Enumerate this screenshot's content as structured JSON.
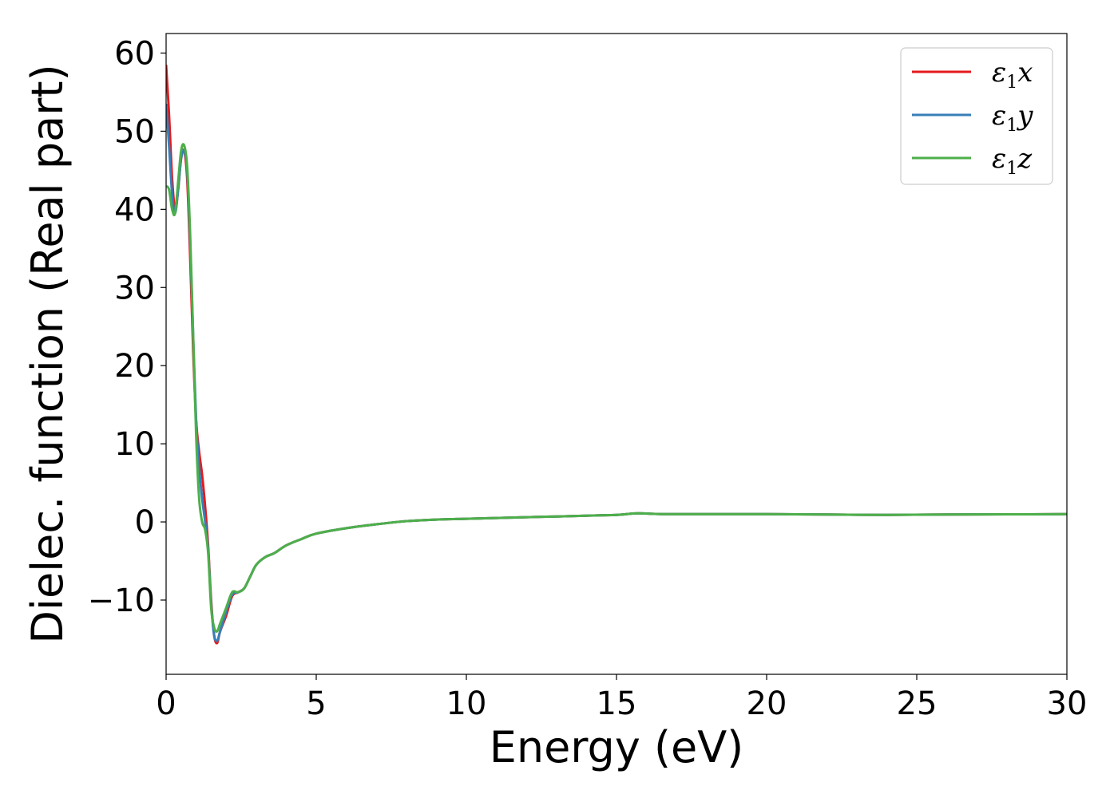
{
  "chart_data": {
    "type": "line",
    "title": "",
    "xlabel": "Energy (eV)",
    "ylabel": "Dielec. function (Real part)",
    "xlim": [
      0,
      30
    ],
    "ylim": [
      -19.5,
      62.5
    ],
    "xticks": [
      0,
      5,
      10,
      15,
      20,
      25,
      30
    ],
    "xtick_labels": [
      "0",
      "5",
      "10",
      "15",
      "20",
      "25",
      "30"
    ],
    "yticks": [
      -10,
      0,
      10,
      20,
      30,
      40,
      50,
      60
    ],
    "ytick_labels": [
      "−10",
      "0",
      "10",
      "20",
      "30",
      "40",
      "50",
      "60"
    ],
    "grid": false,
    "legend": {
      "position": "top-right",
      "entries": [
        {
          "symbol": "ε",
          "sub": "1",
          "axis": "x"
        },
        {
          "symbol": "ε",
          "sub": "1",
          "axis": "y"
        },
        {
          "symbol": "ε",
          "sub": "1",
          "axis": "z"
        }
      ]
    },
    "series": [
      {
        "name": "ε1x",
        "color": "#e41a1c",
        "x": [
          0.0,
          0.1,
          0.2,
          0.3,
          0.4,
          0.5,
          0.6,
          0.7,
          0.8,
          0.9,
          1.0,
          1.1,
          1.2,
          1.3,
          1.4,
          1.5,
          1.6,
          1.7,
          1.8,
          2.0,
          2.2,
          2.4,
          2.6,
          2.8,
          3.0,
          3.3,
          3.6,
          4.0,
          4.5,
          5.0,
          6.0,
          7.0,
          8.0,
          9.0,
          10.0,
          11.0,
          12.0,
          13.0,
          14.0,
          15.0,
          15.7,
          16.5,
          18.0,
          20.0,
          22.0,
          24.0,
          26.0,
          28.0,
          30.0
        ],
        "y": [
          58.5,
          52.0,
          44.0,
          40.0,
          42.5,
          46.5,
          47.5,
          44.0,
          34.0,
          22.0,
          13.0,
          9.0,
          6.0,
          2.0,
          -3.0,
          -10.0,
          -14.5,
          -15.5,
          -14.0,
          -12.0,
          -9.5,
          -9.0,
          -8.5,
          -7.0,
          -5.5,
          -4.5,
          -4.0,
          -3.0,
          -2.2,
          -1.5,
          -0.8,
          -0.3,
          0.1,
          0.3,
          0.4,
          0.5,
          0.6,
          0.7,
          0.8,
          0.9,
          1.1,
          1.0,
          1.0,
          1.0,
          0.95,
          0.9,
          0.95,
          0.97,
          1.0
        ]
      },
      {
        "name": "ε1y",
        "color": "#377eb8",
        "x": [
          0.0,
          0.1,
          0.2,
          0.3,
          0.4,
          0.5,
          0.6,
          0.7,
          0.8,
          0.9,
          1.0,
          1.1,
          1.2,
          1.3,
          1.4,
          1.5,
          1.6,
          1.7,
          1.8,
          2.0,
          2.2,
          2.4,
          2.6,
          2.8,
          3.0,
          3.3,
          3.6,
          4.0,
          4.5,
          5.0,
          6.0,
          7.0,
          8.0,
          9.0,
          10.0,
          11.0,
          12.0,
          13.0,
          14.0,
          15.0,
          15.7,
          16.5,
          18.0,
          20.0,
          22.0,
          24.0,
          26.0,
          28.0,
          30.0
        ],
        "y": [
          53.5,
          48.0,
          42.0,
          39.5,
          42.5,
          46.5,
          47.5,
          45.0,
          36.0,
          24.0,
          13.0,
          7.0,
          3.0,
          0.0,
          -3.5,
          -10.5,
          -14.5,
          -15.2,
          -14.0,
          -11.5,
          -9.3,
          -9.0,
          -8.5,
          -7.0,
          -5.5,
          -4.5,
          -4.0,
          -3.0,
          -2.2,
          -1.5,
          -0.8,
          -0.3,
          0.1,
          0.3,
          0.4,
          0.5,
          0.6,
          0.7,
          0.8,
          0.9,
          1.1,
          1.0,
          1.0,
          1.0,
          0.95,
          0.9,
          0.95,
          0.97,
          1.0
        ]
      },
      {
        "name": "ε1z",
        "color": "#4daf4a",
        "x": [
          0.0,
          0.1,
          0.2,
          0.3,
          0.4,
          0.5,
          0.6,
          0.7,
          0.8,
          0.9,
          1.0,
          1.1,
          1.2,
          1.3,
          1.4,
          1.5,
          1.6,
          1.7,
          1.8,
          2.0,
          2.2,
          2.4,
          2.6,
          2.8,
          3.0,
          3.3,
          3.6,
          4.0,
          4.5,
          5.0,
          6.0,
          7.0,
          8.0,
          9.0,
          10.0,
          11.0,
          12.0,
          13.0,
          14.0,
          15.0,
          15.7,
          16.5,
          18.0,
          20.0,
          22.0,
          24.0,
          26.0,
          28.0,
          30.0
        ],
        "y": [
          43.0,
          42.5,
          40.0,
          39.5,
          43.5,
          47.5,
          48.2,
          45.5,
          37.0,
          24.0,
          11.0,
          3.0,
          0.0,
          -1.0,
          -4.0,
          -11.0,
          -13.5,
          -14.0,
          -13.0,
          -11.0,
          -9.0,
          -9.0,
          -8.5,
          -7.0,
          -5.5,
          -4.5,
          -4.0,
          -3.0,
          -2.2,
          -1.5,
          -0.8,
          -0.3,
          0.1,
          0.3,
          0.4,
          0.5,
          0.6,
          0.7,
          0.8,
          0.9,
          1.1,
          1.0,
          1.0,
          1.0,
          0.95,
          0.9,
          0.95,
          0.97,
          1.0
        ]
      }
    ]
  }
}
